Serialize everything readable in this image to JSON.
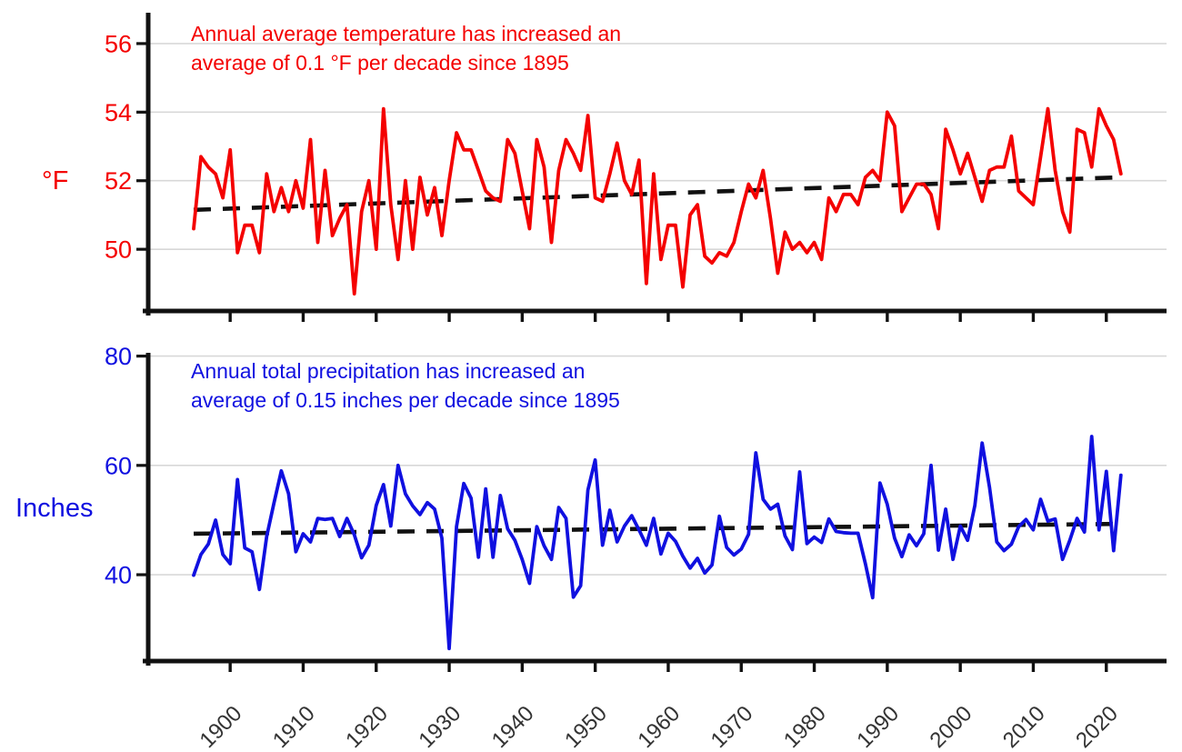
{
  "figure_title": "",
  "x_axis": {
    "ticks": [
      1900,
      1910,
      1920,
      1930,
      1940,
      1950,
      1960,
      1970,
      1980,
      1990,
      2000,
      2010,
      2020
    ],
    "label_color": "#333333"
  },
  "chart_data": [
    {
      "type": "line",
      "title": "Annual average temperature",
      "annotation_line1": "Annual average temperature has increased an",
      "annotation_line2": "average of 0.1 °F per decade since 1895",
      "unit_label": "°F",
      "line_color": "#f40000",
      "ylim": [
        48.2,
        56.9
      ],
      "yticks": [
        50,
        52,
        54,
        56
      ],
      "x_start_year": 1895,
      "x_step": 1,
      "values": [
        50.6,
        52.7,
        52.4,
        52.2,
        51.5,
        52.9,
        49.9,
        50.7,
        50.7,
        49.9,
        52.2,
        51.1,
        51.8,
        51.1,
        52.0,
        51.2,
        53.2,
        50.2,
        52.3,
        50.4,
        50.9,
        51.3,
        48.7,
        51.1,
        52.0,
        50.0,
        54.1,
        51.3,
        49.7,
        52.0,
        50.0,
        52.1,
        51.0,
        51.8,
        50.4,
        52.0,
        53.4,
        52.9,
        52.9,
        52.3,
        51.7,
        51.5,
        51.4,
        53.2,
        52.8,
        51.7,
        50.6,
        53.2,
        52.4,
        50.2,
        52.3,
        53.2,
        52.8,
        52.3,
        53.9,
        51.5,
        51.4,
        52.2,
        53.1,
        52.0,
        51.6,
        52.6,
        49.0,
        52.2,
        49.7,
        50.7,
        50.7,
        48.9,
        51.0,
        51.3,
        49.8,
        49.6,
        49.9,
        49.8,
        50.2,
        51.1,
        51.9,
        51.5,
        52.3,
        50.9,
        49.3,
        50.5,
        50.0,
        50.2,
        49.9,
        50.2,
        49.7,
        51.5,
        51.1,
        51.6,
        51.6,
        51.3,
        52.1,
        52.3,
        52.0,
        54.0,
        53.6,
        51.1,
        51.5,
        51.9,
        51.9,
        51.6,
        50.6,
        53.5,
        52.9,
        52.2,
        52.8,
        52.1,
        51.4,
        52.3,
        52.4,
        52.4,
        53.3,
        51.7,
        51.5,
        51.3,
        52.7,
        54.1,
        52.3,
        51.1,
        50.5,
        53.5,
        53.4,
        52.4,
        54.1,
        53.6,
        53.2,
        52.2
      ],
      "trend": {
        "style": "dashed",
        "color": "#111111",
        "start": {
          "year": 1895,
          "value": 51.15
        },
        "end": {
          "year": 2022,
          "value": 52.1
        }
      }
    },
    {
      "type": "line",
      "title": "Annual total precipitation",
      "annotation_line1": "Annual total precipitation has increased an",
      "annotation_line2": "average of 0.15 inches per decade since 1895",
      "unit_label": "Inches",
      "line_color": "#1010e0",
      "ylim": [
        24.2,
        80.6
      ],
      "yticks": [
        40,
        60,
        80
      ],
      "x_start_year": 1895,
      "x_step": 1,
      "values": [
        39.9,
        43.7,
        45.6,
        50.0,
        43.7,
        42.0,
        57.4,
        44.9,
        44.2,
        37.3,
        47.0,
        53.1,
        59.0,
        54.8,
        44.2,
        47.5,
        46.0,
        50.3,
        50.1,
        50.3,
        47.0,
        50.3,
        47.3,
        43.1,
        45.4,
        52.7,
        56.5,
        48.9,
        60.0,
        54.8,
        52.6,
        51.0,
        53.2,
        52.0,
        46.7,
        26.5,
        48.8,
        56.7,
        54.0,
        43.2,
        55.7,
        43.2,
        54.5,
        48.4,
        46.3,
        42.8,
        38.4,
        48.8,
        45.3,
        42.8,
        52.3,
        50.3,
        35.9,
        38.0,
        55.5,
        61.0,
        45.4,
        51.8,
        46.0,
        48.9,
        50.8,
        48.2,
        45.4,
        50.3,
        43.8,
        47.6,
        46.1,
        43.4,
        41.2,
        43.0,
        40.3,
        41.8,
        50.7,
        45.0,
        43.6,
        44.7,
        47.4,
        62.3,
        53.8,
        52.0,
        52.9,
        47.1,
        44.6,
        58.8,
        45.7,
        46.9,
        45.9,
        50.2,
        47.9,
        47.7,
        47.6,
        47.6,
        42.0,
        35.8,
        56.8,
        52.9,
        46.7,
        43.3,
        47.3,
        45.3,
        47.5,
        60.0,
        44.5,
        52.0,
        42.8,
        48.9,
        46.3,
        52.7,
        64.1,
        56.0,
        46.0,
        44.4,
        45.6,
        48.8,
        50.1,
        48.2,
        53.8,
        49.8,
        50.2,
        42.8,
        46.3,
        50.3,
        47.8,
        65.3,
        48.2,
        58.9,
        44.4,
        58.2
      ],
      "trend": {
        "style": "dashed",
        "color": "#111111",
        "start": {
          "year": 1895,
          "value": 47.5
        },
        "end": {
          "year": 2022,
          "value": 49.3
        }
      }
    }
  ]
}
